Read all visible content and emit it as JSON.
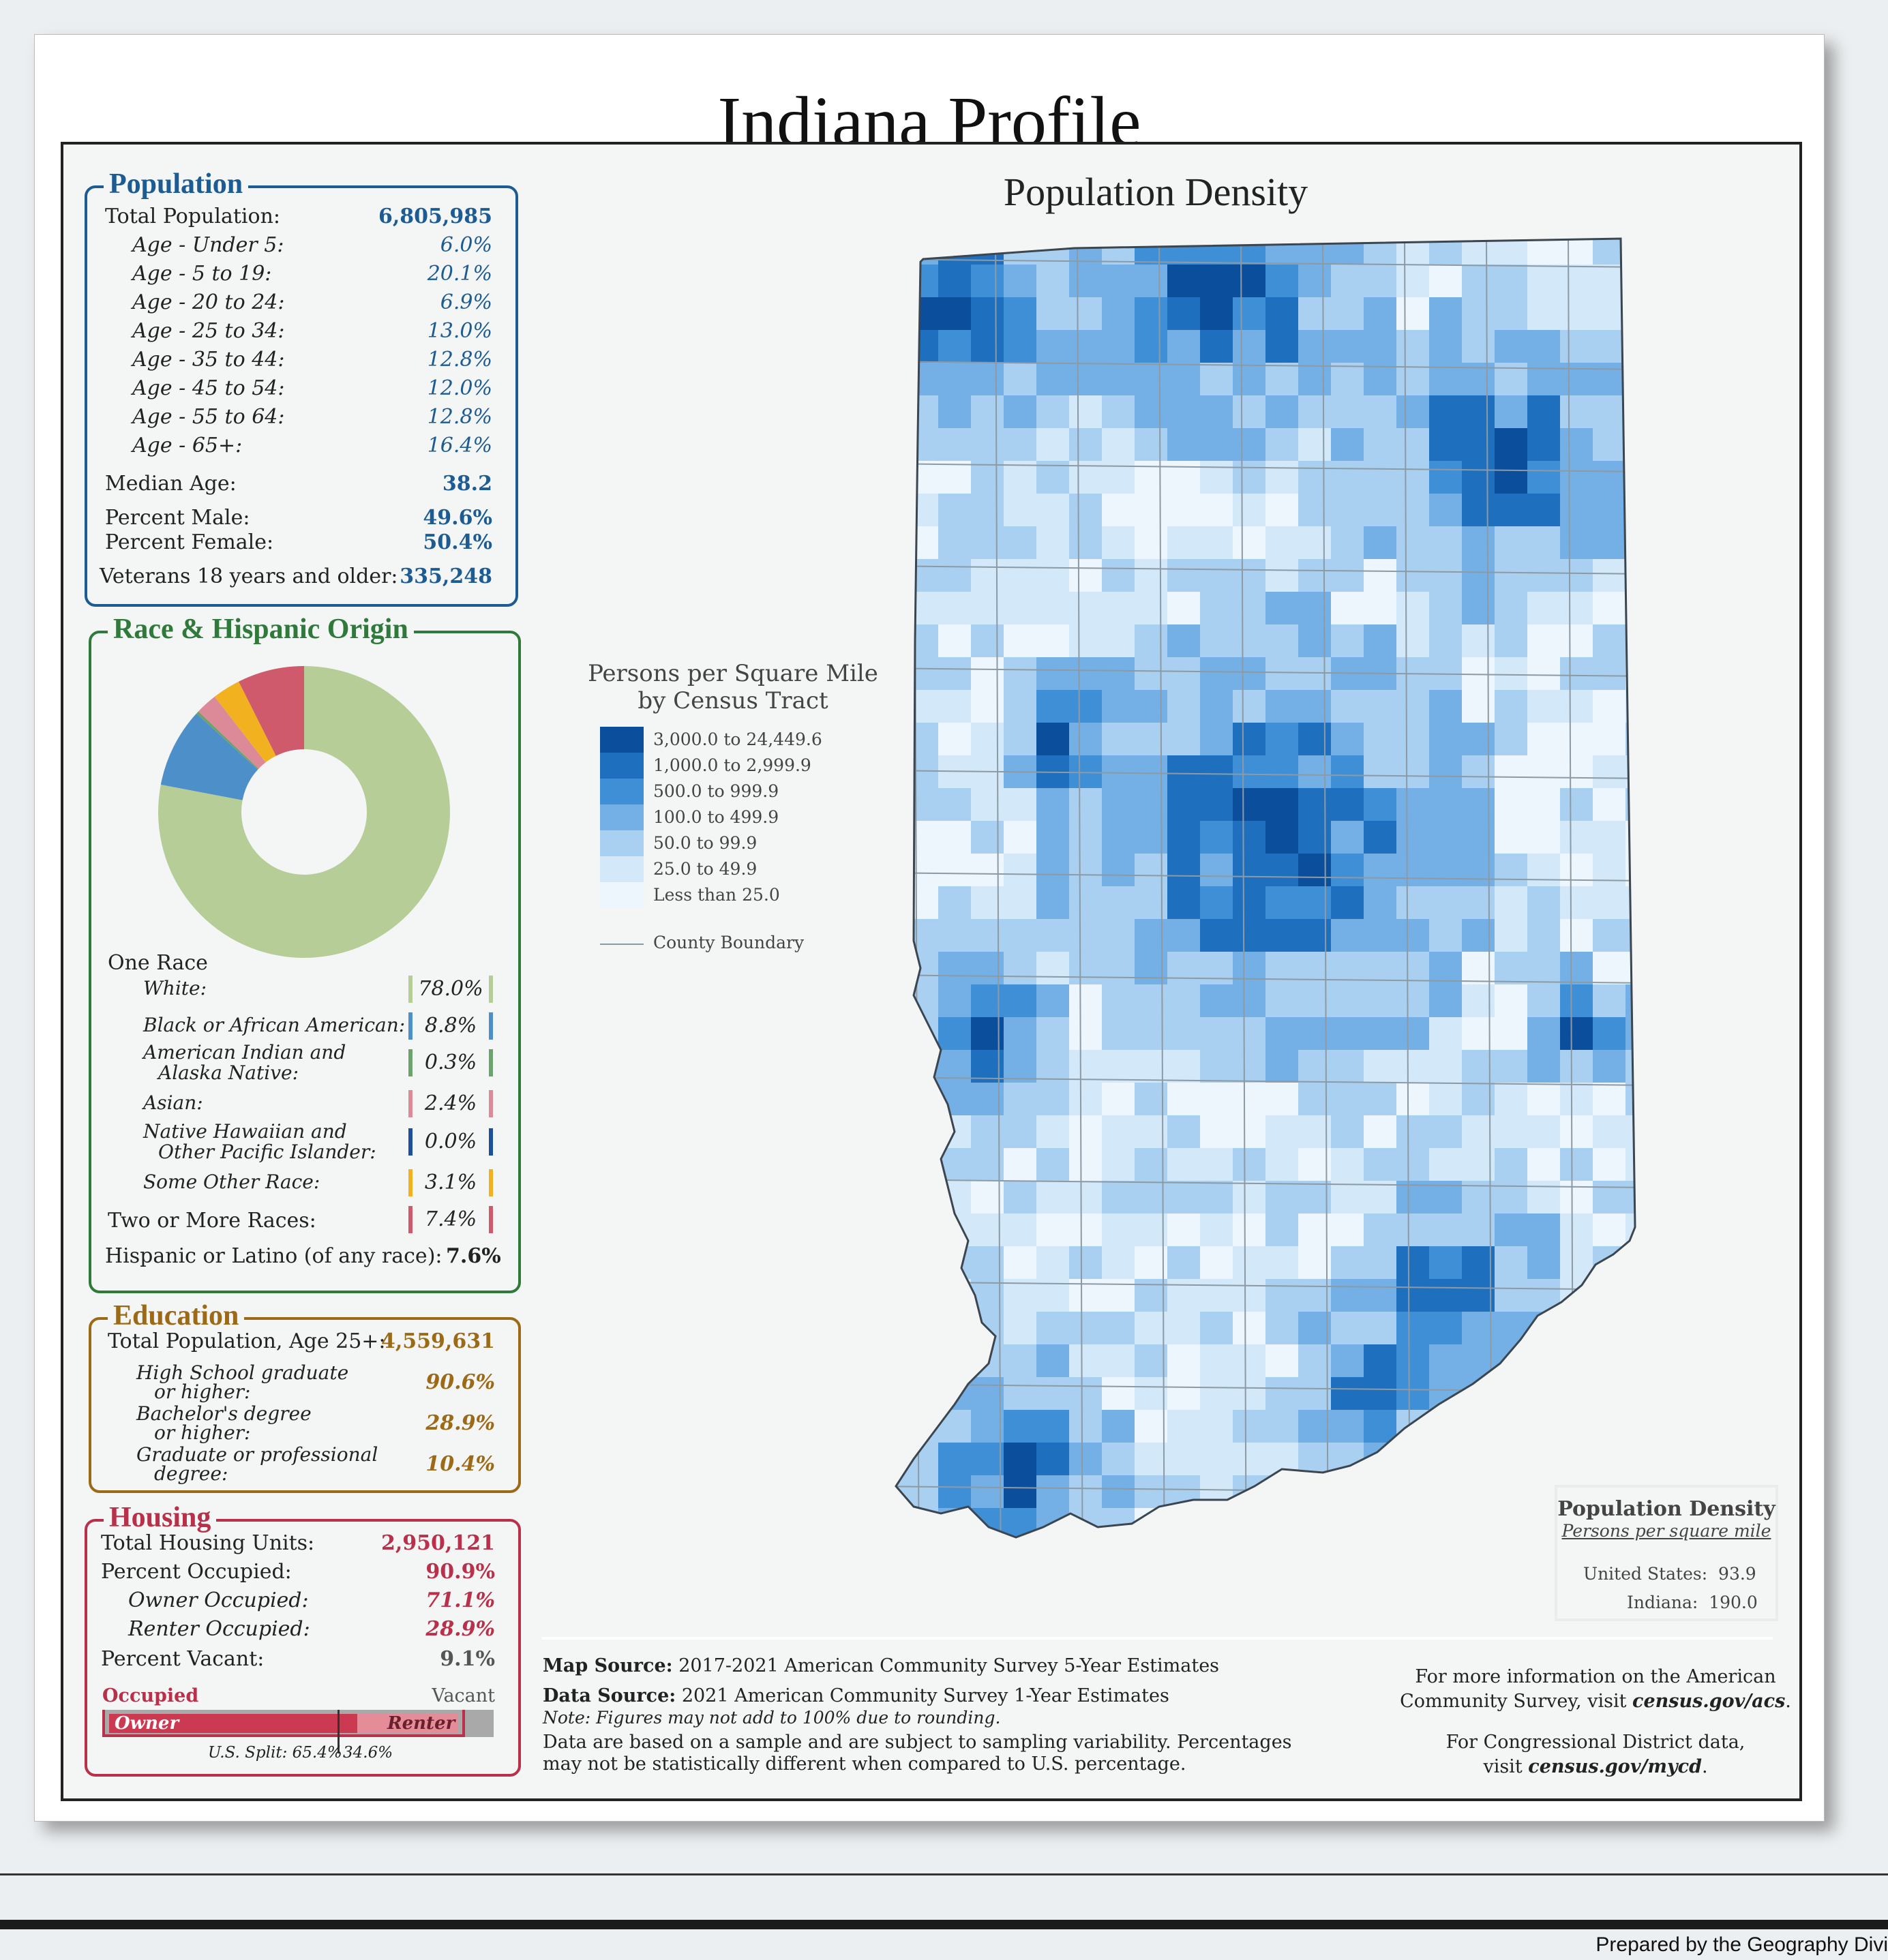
{
  "title": "Indiana Profile",
  "population": {
    "heading": "Population",
    "rows": [
      {
        "label": "Total Population:",
        "value": "6,805,985"
      },
      {
        "label": "Age - Under 5:",
        "value": "6.0%"
      },
      {
        "label": "Age - 5 to 19:",
        "value": "20.1%"
      },
      {
        "label": "Age - 20 to 24:",
        "value": "6.9%"
      },
      {
        "label": "Age - 25 to 34:",
        "value": "13.0%"
      },
      {
        "label": "Age - 35 to 44:",
        "value": "12.8%"
      },
      {
        "label": "Age - 45 to 54:",
        "value": "12.0%"
      },
      {
        "label": "Age - 55 to 64:",
        "value": "12.8%"
      },
      {
        "label": "Age - 65+:",
        "value": "16.4%"
      },
      {
        "label": "Median Age:",
        "value": "38.2"
      },
      {
        "label": "Percent Male:",
        "value": "49.6%"
      },
      {
        "label": "Percent Female:",
        "value": "50.4%"
      },
      {
        "label": "Veterans 18 years and older:",
        "value": "335,248"
      }
    ]
  },
  "race": {
    "heading": "Race & Hispanic Origin",
    "one_race": "One Race",
    "items": [
      {
        "label": "White:",
        "value": "78.0%",
        "color": "#b6cd98"
      },
      {
        "label": "Black or African American:",
        "value": "8.8%",
        "color": "#4d8fc9"
      },
      {
        "label": "American Indian and",
        "label2": "Alaska Native:",
        "value": "0.3%",
        "color": "#6ca36c"
      },
      {
        "label": "Asian:",
        "value": "2.4%",
        "color": "#dc8a97"
      },
      {
        "label": "Native Hawaiian and",
        "label2": "Other Pacific Islander:",
        "value": "0.0%",
        "color": "#1d4f9c"
      },
      {
        "label": "Some Other Race:",
        "value": "3.1%",
        "color": "#f2b220"
      },
      {
        "label": "Two or More Races:",
        "value": "7.4%",
        "color": "#cf5a6b"
      }
    ],
    "hispanic_label": "Hispanic or Latino (of any race):",
    "hispanic_value": "7.6%"
  },
  "education": {
    "heading": "Education",
    "rows": [
      {
        "label": "Total Population, Age 25+:",
        "value": "4,559,631"
      },
      {
        "label": "High School  graduate",
        "label2": "or higher:",
        "value": "90.6%"
      },
      {
        "label": "Bachelor's degree",
        "label2": "or higher:",
        "value": "28.9%"
      },
      {
        "label": "Graduate or professional",
        "label2": "degree:",
        "value": "10.4%"
      }
    ]
  },
  "housing": {
    "heading": "Housing",
    "rows": [
      {
        "label": "Total Housing Units:",
        "value": "2,950,121"
      },
      {
        "label": "Percent Occupied:",
        "value": "90.9%"
      },
      {
        "label": "Owner Occupied:",
        "value": "71.1%"
      },
      {
        "label": "Renter Occupied:",
        "value": "28.9%"
      },
      {
        "label": "Percent Vacant:",
        "value": "9.1%"
      }
    ],
    "occupied_label": "Occupied",
    "vacant_label": "Vacant",
    "owner_label": "Owner",
    "renter_label": "Renter",
    "us_split_left": "U.S. Split: 65.4%",
    "us_split_right": "34.6%",
    "occupied_fraction": 0.909,
    "owner_fraction_of_occupied": 0.711,
    "us_owner_fraction": 0.654
  },
  "map": {
    "title": "Population Density",
    "legend_title": [
      "Persons per Square Mile",
      "by Census Tract"
    ],
    "legend": [
      {
        "label": "3,000.0 to 24,449.6",
        "color": "#0b4f9c"
      },
      {
        "label": "1,000.0 to 2,999.9",
        "color": "#1e70bf"
      },
      {
        "label": "500.0 to 999.9",
        "color": "#3f8fd6"
      },
      {
        "label": "100.0 to 499.9",
        "color": "#74b0e6"
      },
      {
        "label": "50.0 to 99.9",
        "color": "#a9d0f1"
      },
      {
        "label": "25.0 to 49.9",
        "color": "#d3e8f8"
      },
      {
        "label": "Less than 25.0",
        "color": "#eef6fd"
      }
    ],
    "boundary_label": "County Boundary"
  },
  "density_box": {
    "title": "Population Density",
    "subtitle": "Persons per square mile",
    "us_label": "United States:",
    "us_value": "93.9",
    "state_label": "Indiana:",
    "state_value": "190.0"
  },
  "sources": {
    "map_source_label": "Map Source:",
    "map_source": "2017-2021 American Community Survey 5-Year Estimates",
    "data_source_label": "Data Source:",
    "data_source": "2021 American Community Survey 1-Year Estimates",
    "note": "Note: Figures may not add to 100% due to rounding.",
    "disclaimer1": "Data are based on a sample and are subject to sampling variability. Percentages",
    "disclaimer2": "may not be statistically different when compared to U.S. percentage."
  },
  "info": {
    "line1": "For more information on the American",
    "line2a": "Community Survey, visit ",
    "line2b": "census.gov/acs",
    "line3": "For Congressional District data,",
    "line4a": "visit ",
    "line4b": "census.gov/mycd"
  },
  "prepared": "Prepared by the Geography Divi"
}
